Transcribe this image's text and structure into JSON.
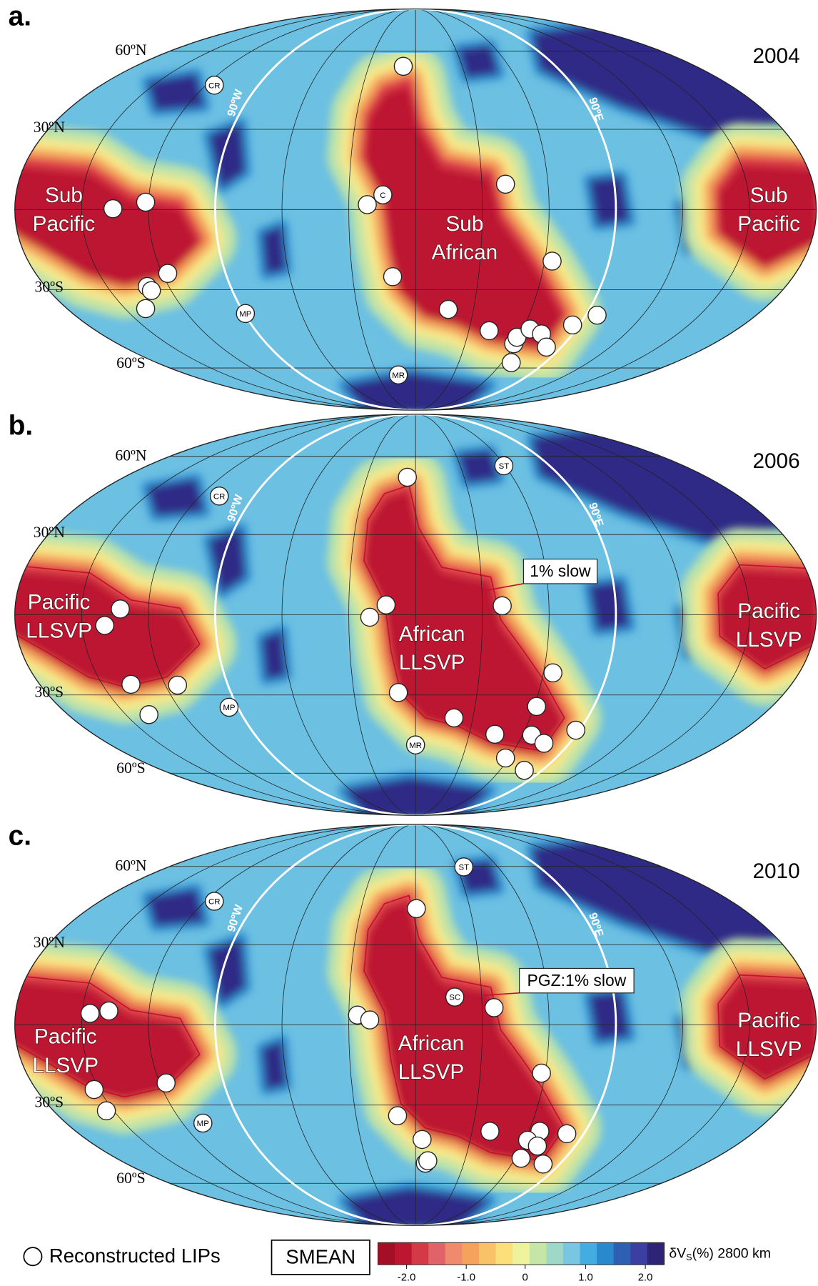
{
  "panels": [
    {
      "label": "a.",
      "year": "2004",
      "lat_labels": [
        "60ºN",
        "30ºN",
        "30ºS",
        "60ºS"
      ],
      "meridian_labels": [
        "90ºW",
        "90ºE"
      ],
      "regions": [
        [
          "Sub",
          "Pacific"
        ],
        [
          "Sub",
          "African"
        ],
        [
          "Sub",
          "Pacific"
        ]
      ],
      "sites": [
        "CR",
        "MP",
        "C",
        "MR"
      ]
    },
    {
      "label": "b.",
      "year": "2006",
      "lat_labels": [
        "60ºN",
        "30ºN",
        "30ºS",
        "60ºS"
      ],
      "meridian_labels": [
        "90ºW",
        "90ºE"
      ],
      "regions": [
        [
          "Pacific",
          "LLSVP"
        ],
        [
          "African",
          "LLSVP"
        ],
        [
          "Pacific",
          "LLSVP"
        ]
      ],
      "sites": [
        "CR",
        "ST",
        "MP",
        "MR"
      ],
      "callout": "1% slow"
    },
    {
      "label": "c.",
      "year": "2010",
      "lat_labels": [
        "60ºN",
        "30ºN",
        "30ºS",
        "60ºS"
      ],
      "meridian_labels": [
        "90ºW",
        "90ºE"
      ],
      "regions": [
        [
          "Pacific",
          "LLSVP"
        ],
        [
          "African",
          "LLSVP"
        ],
        [
          "Pacific",
          "LLSVP"
        ]
      ],
      "sites": [
        "CR",
        "ST",
        "SC",
        "MP"
      ],
      "callout": "PGZ:1% slow"
    }
  ],
  "legend": {
    "lips": "Reconstructed LIPs",
    "model": "SMEAN",
    "colorbar_ticks": [
      "-2.0",
      "-1.0",
      "0",
      "1.0",
      "2.0"
    ],
    "unit": [
      "δV",
      "S",
      "(%) 2800 km"
    ]
  }
}
